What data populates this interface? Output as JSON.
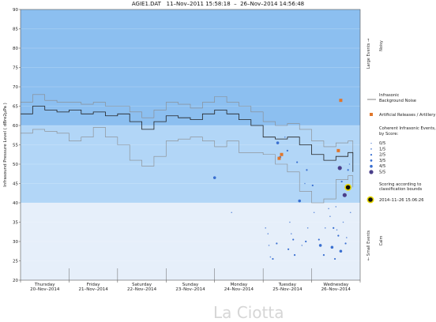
{
  "title": {
    "file": "AGIE1.DAT",
    "start": "11–Nov–2011 15:58:18",
    "sep": "–",
    "end": "26–Nov–2014 14:56:48"
  },
  "watermark": "La Ciotta",
  "colors": {
    "band_large": "#8cbff0",
    "band_mid": "#b2d6f7",
    "band_small": "#e6effa",
    "noise_line": "#222222",
    "noise_envelope": "#8a8a8a",
    "artificial": "#e0762b",
    "score_dot": "#3a6fd0",
    "score5_dot": "#4a3f8a",
    "highlight_ring": "#e8d800"
  },
  "chart_data": {
    "type": "line",
    "title": "AGIE1.DAT   11–Nov–2011 15:58:18   –   26–Nov–2014 14:56:48",
    "ylabel": "Infrasound Pressure Level  ( dBre2µPa )",
    "ylim": [
      20,
      90
    ],
    "yticks": [
      20,
      25,
      30,
      35,
      40,
      45,
      50,
      55,
      60,
      65,
      70,
      75,
      80,
      85,
      90
    ],
    "xlim": [
      0,
      7
    ],
    "day_labels": [
      {
        "day": "Thursday",
        "date": "20–Nov–2014"
      },
      {
        "day": "Friday",
        "date": "21–Nov–2014"
      },
      {
        "day": "Saturday",
        "date": "22–Nov–2014"
      },
      {
        "day": "Sunday",
        "date": "23–Nov–2014"
      },
      {
        "day": "Monday",
        "date": "24–Nov–2014"
      },
      {
        "day": "Tuesday",
        "date": "25–Nov–2014"
      },
      {
        "day": "Wednesday",
        "date": "26–Nov–2014"
      }
    ],
    "bands": [
      {
        "name": "large",
        "from": 60,
        "to": 90
      },
      {
        "name": "mid",
        "from": 40,
        "to": 60
      },
      {
        "name": "small",
        "from": 20,
        "to": 40
      }
    ],
    "right_labels": [
      {
        "label": "Large Events →",
        "sub": "Noisy"
      },
      {
        "label": "← Small Events",
        "sub": "Calm"
      }
    ],
    "noise_median": {
      "name": "Infrasonic Background Noise",
      "x": [
        0.0,
        0.25,
        0.5,
        0.75,
        1.0,
        1.25,
        1.5,
        1.75,
        2.0,
        2.25,
        2.5,
        2.75,
        3.0,
        3.25,
        3.5,
        3.75,
        4.0,
        4.25,
        4.5,
        4.75,
        5.0,
        5.25,
        5.5,
        5.75,
        6.0,
        6.25,
        6.5,
        6.75,
        6.85
      ],
      "y": [
        63,
        65,
        64,
        63.5,
        64,
        63,
        63.5,
        62.5,
        63,
        61,
        59,
        61,
        62.5,
        62,
        61.5,
        63,
        64,
        63,
        61.5,
        60,
        57,
        56.5,
        57,
        55,
        52.5,
        51,
        52,
        53,
        48
      ]
    },
    "noise_upper": {
      "x": [
        0.0,
        0.25,
        0.5,
        0.75,
        1.0,
        1.25,
        1.5,
        1.75,
        2.0,
        2.25,
        2.5,
        2.75,
        3.0,
        3.25,
        3.5,
        3.75,
        4.0,
        4.25,
        4.5,
        4.75,
        5.0,
        5.25,
        5.5,
        5.75,
        6.0,
        6.25,
        6.5,
        6.75,
        6.85
      ],
      "y": [
        66,
        68,
        66.5,
        66,
        66,
        65.5,
        66,
        65,
        65,
        63.5,
        62,
        64,
        66,
        65.5,
        64.5,
        66,
        67.5,
        66,
        65,
        63.5,
        61,
        60,
        60.5,
        59,
        56,
        54.5,
        55.5,
        56,
        52
      ]
    },
    "noise_lower": {
      "x": [
        0.0,
        0.25,
        0.5,
        0.75,
        1.0,
        1.25,
        1.5,
        1.75,
        2.0,
        2.25,
        2.5,
        2.75,
        3.0,
        3.25,
        3.5,
        3.75,
        4.0,
        4.25,
        4.5,
        4.75,
        5.0,
        5.25,
        5.5,
        5.75,
        6.0,
        6.25,
        6.5,
        6.75,
        6.85
      ],
      "y": [
        58,
        59,
        58.5,
        58,
        56,
        57,
        59.5,
        57,
        55,
        51,
        49.5,
        52,
        56,
        56.5,
        57,
        56,
        54.5,
        56,
        53,
        53,
        52.5,
        50,
        48,
        43,
        40,
        41,
        46,
        47,
        44
      ]
    },
    "artificial_releases": {
      "name": "Artificial Releases / Artillery",
      "points": [
        [
          5.33,
          51.5
        ],
        [
          5.38,
          52.5
        ],
        [
          6.55,
          53.5
        ],
        [
          6.6,
          66.5
        ]
      ]
    },
    "coherent_events": {
      "name": "Coherent Infrasonic Events, by Score:",
      "scores": [
        "0/5",
        "1/5",
        "2/5",
        "3/5",
        "4/5",
        "5/5"
      ],
      "points": [
        {
          "x": 4.0,
          "y": 46.5,
          "score": 4
        },
        {
          "x": 4.35,
          "y": 37.5,
          "score": 1
        },
        {
          "x": 5.05,
          "y": 33.5,
          "score": 1
        },
        {
          "x": 5.1,
          "y": 32.0,
          "score": 1
        },
        {
          "x": 5.12,
          "y": 29.0,
          "score": 1
        },
        {
          "x": 5.15,
          "y": 26.0,
          "score": 1
        },
        {
          "x": 5.2,
          "y": 25.5,
          "score": 2
        },
        {
          "x": 5.28,
          "y": 29.5,
          "score": 2
        },
        {
          "x": 5.3,
          "y": 55.5,
          "score": 4
        },
        {
          "x": 5.35,
          "y": 51.8,
          "score": 3
        },
        {
          "x": 5.45,
          "y": 57.0,
          "score": 1
        },
        {
          "x": 5.5,
          "y": 53.5,
          "score": 2
        },
        {
          "x": 5.52,
          "y": 28.0,
          "score": 2
        },
        {
          "x": 5.55,
          "y": 35.0,
          "score": 1
        },
        {
          "x": 5.58,
          "y": 32.0,
          "score": 1
        },
        {
          "x": 5.62,
          "y": 30.5,
          "score": 2
        },
        {
          "x": 5.65,
          "y": 26.5,
          "score": 2
        },
        {
          "x": 5.7,
          "y": 50.5,
          "score": 2
        },
        {
          "x": 5.75,
          "y": 40.5,
          "score": 4
        },
        {
          "x": 5.8,
          "y": 29.0,
          "score": 1
        },
        {
          "x": 5.86,
          "y": 45.0,
          "score": 1
        },
        {
          "x": 5.88,
          "y": 30.0,
          "score": 2
        },
        {
          "x": 5.9,
          "y": 48.5,
          "score": 2
        },
        {
          "x": 5.92,
          "y": 33.5,
          "score": 1
        },
        {
          "x": 6.02,
          "y": 44.5,
          "score": 2
        },
        {
          "x": 6.05,
          "y": 37.5,
          "score": 1
        },
        {
          "x": 6.15,
          "y": 30.5,
          "score": 2
        },
        {
          "x": 6.18,
          "y": 29.0,
          "score": 4
        },
        {
          "x": 6.25,
          "y": 26.5,
          "score": 2
        },
        {
          "x": 6.28,
          "y": 33.5,
          "score": 1
        },
        {
          "x": 6.35,
          "y": 38.5,
          "score": 1
        },
        {
          "x": 6.38,
          "y": 36.5,
          "score": 1
        },
        {
          "x": 6.42,
          "y": 28.5,
          "score": 4
        },
        {
          "x": 6.45,
          "y": 33.5,
          "score": 2
        },
        {
          "x": 6.48,
          "y": 25.5,
          "score": 2
        },
        {
          "x": 6.5,
          "y": 39.0,
          "score": 1
        },
        {
          "x": 6.52,
          "y": 33.0,
          "score": 1
        },
        {
          "x": 6.55,
          "y": 31.5,
          "score": 2
        },
        {
          "x": 6.58,
          "y": 49.0,
          "score": 5
        },
        {
          "x": 6.6,
          "y": 27.5,
          "score": 4
        },
        {
          "x": 6.62,
          "y": 45.5,
          "score": 2
        },
        {
          "x": 6.65,
          "y": 35.0,
          "score": 1
        },
        {
          "x": 6.68,
          "y": 42.0,
          "score": 5
        },
        {
          "x": 6.7,
          "y": 29.5,
          "score": 2
        },
        {
          "x": 6.72,
          "y": 31.0,
          "score": 1
        },
        {
          "x": 6.75,
          "y": 48.5,
          "score": 2
        },
        {
          "x": 6.78,
          "y": 50.0,
          "score": 1
        },
        {
          "x": 6.8,
          "y": 37.5,
          "score": 1
        }
      ]
    },
    "highlight": {
      "x": 6.75,
      "y": 44.0,
      "label": "Scoring according to classification bounds",
      "time": "2014–11–26 15:06:26"
    }
  }
}
